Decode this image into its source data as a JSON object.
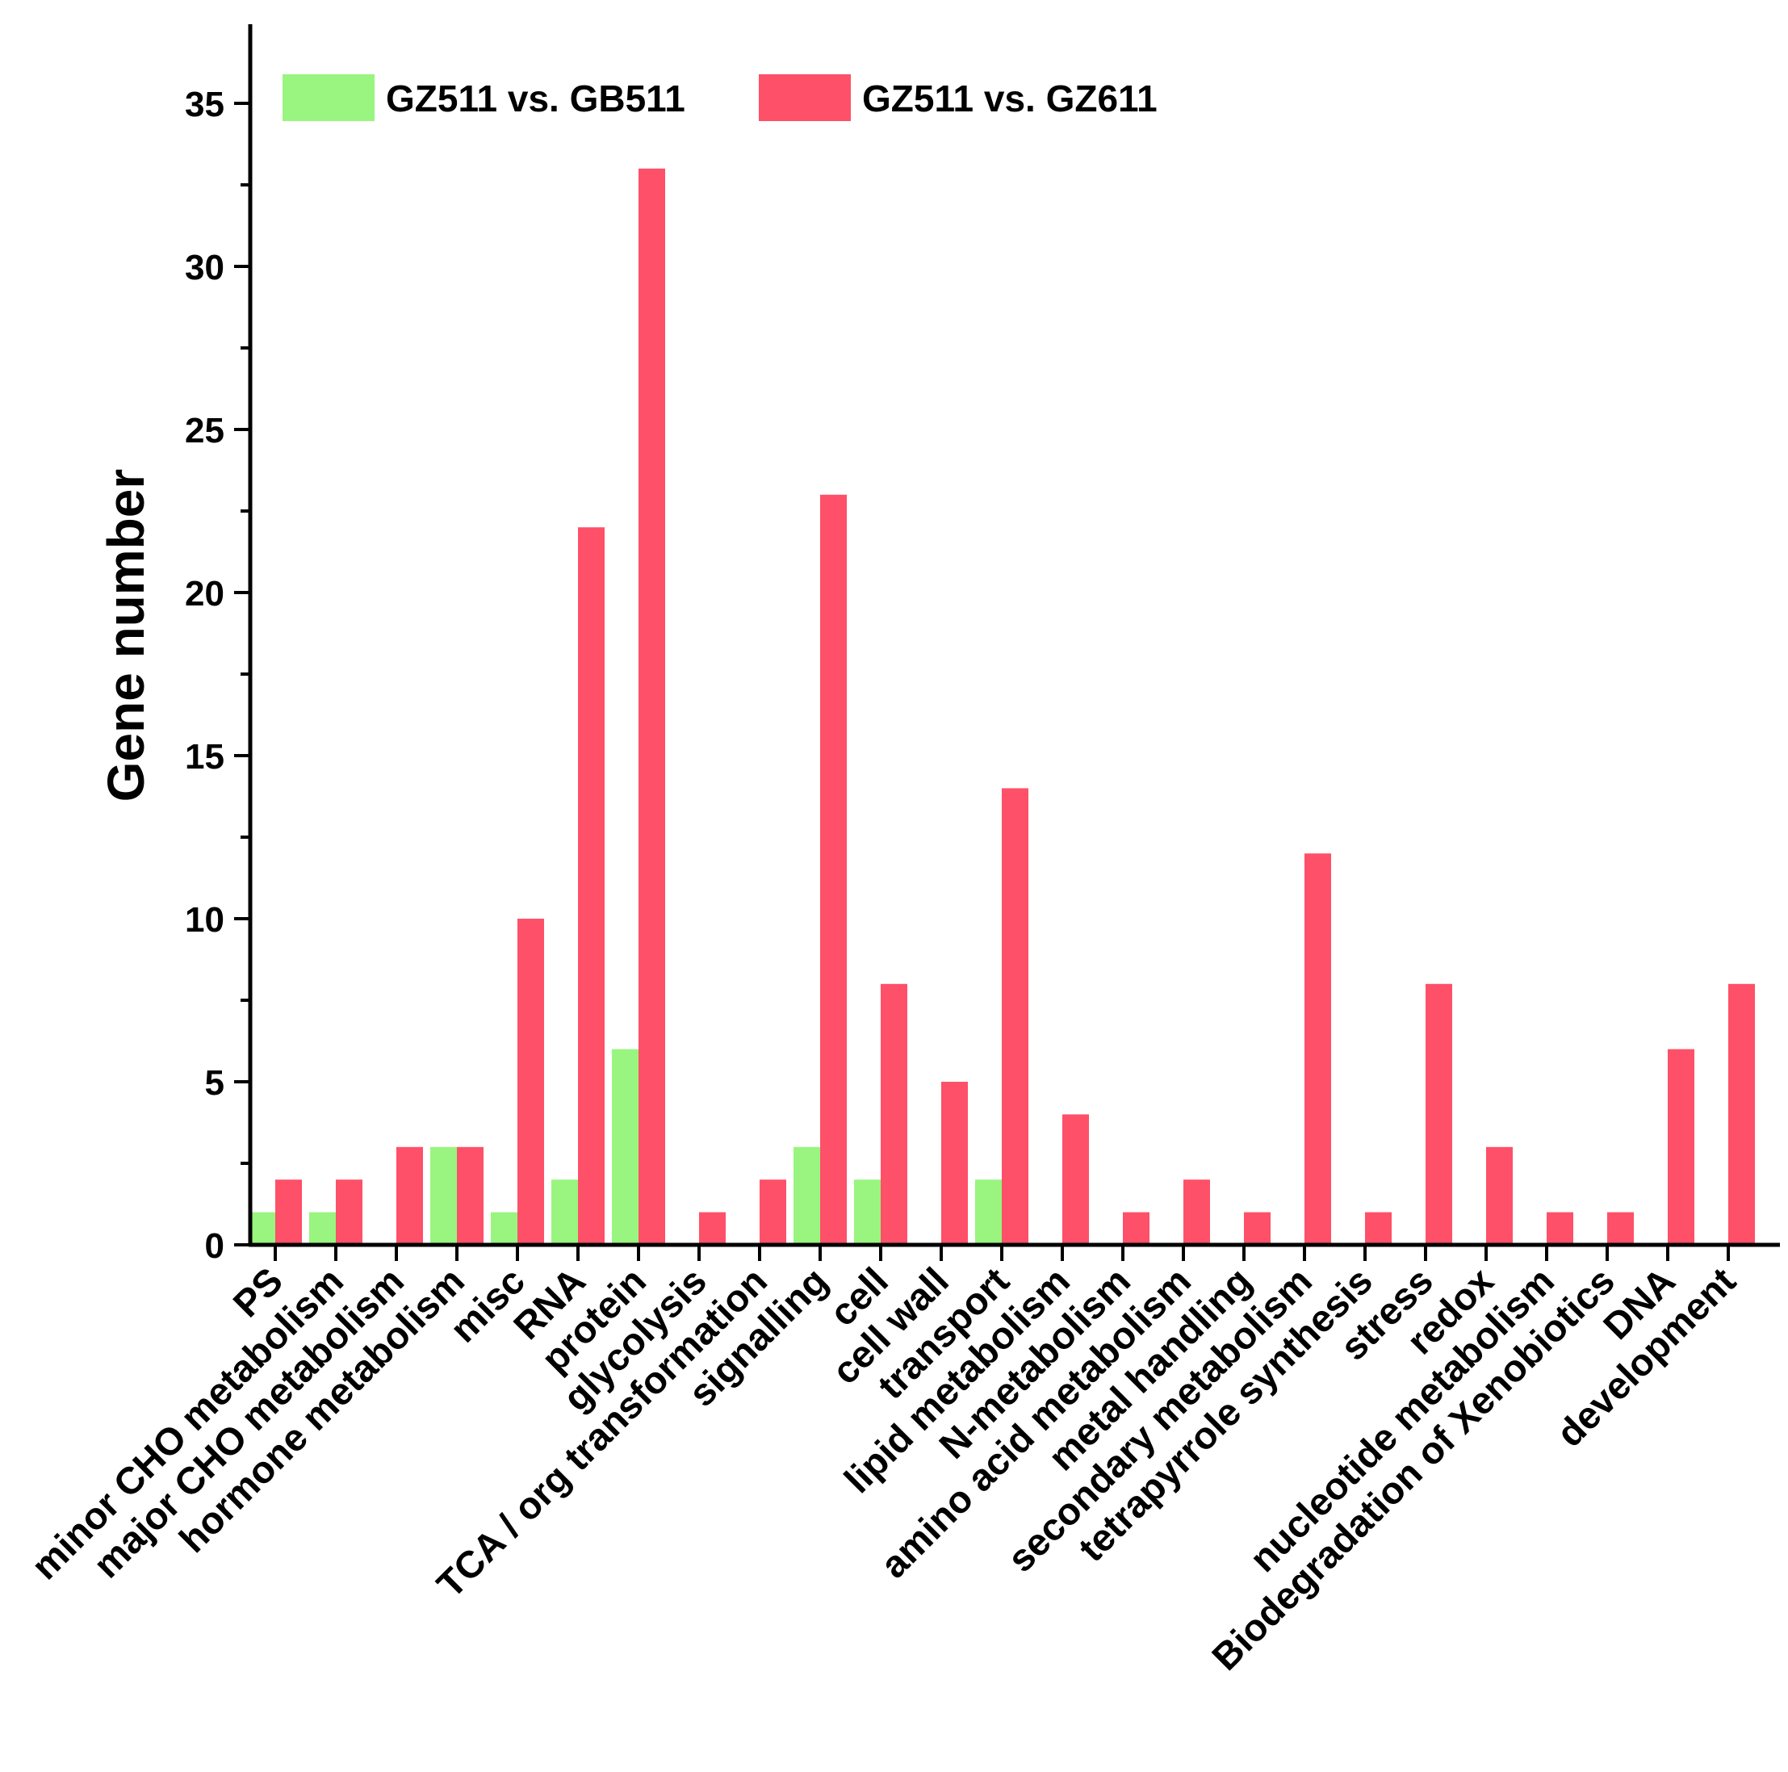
{
  "chart_data": {
    "type": "bar",
    "title": "",
    "xlabel": "",
    "ylabel": "Gene number",
    "ylim": [
      0,
      37
    ],
    "yticks": [
      0,
      5,
      10,
      15,
      20,
      25,
      30,
      35
    ],
    "y_tick_labels": [
      "0",
      "5",
      "10",
      "15",
      "20",
      "25",
      "30",
      "35"
    ],
    "grid": false,
    "legend_position": "top-left",
    "categories": [
      "PS",
      "minor CHO metabolism",
      "major CHO metabolism",
      "hormone metabolism",
      "misc",
      "RNA",
      "protein",
      "glycolysis",
      "TCA / org transformation",
      "signalling",
      "cell",
      "cell wall",
      "transport",
      "lipid metabolism",
      "N-metabolism",
      "amino acid metabolism",
      "metal handling",
      "secondary metabolism",
      "tetrapyrrole synthesis",
      "stress",
      "redox",
      "nucleotide metabolism",
      "Biodegradation of Xenobiotics",
      "DNA",
      "development"
    ],
    "series": [
      {
        "name": "GZ511 vs. GB511",
        "color": "#99f57f",
        "values": [
          1,
          1,
          0,
          3,
          1,
          2,
          6,
          0,
          0,
          3,
          2,
          0,
          2,
          0,
          0,
          0,
          0,
          0,
          0,
          0,
          0,
          0,
          0,
          0,
          0
        ]
      },
      {
        "name": "GZ511 vs. GZ611",
        "color": "#fe5068",
        "values": [
          2,
          2,
          3,
          3,
          10,
          22,
          33,
          1,
          2,
          23,
          8,
          5,
          14,
          4,
          1,
          2,
          1,
          12,
          1,
          8,
          3,
          1,
          1,
          6,
          8
        ]
      }
    ]
  }
}
